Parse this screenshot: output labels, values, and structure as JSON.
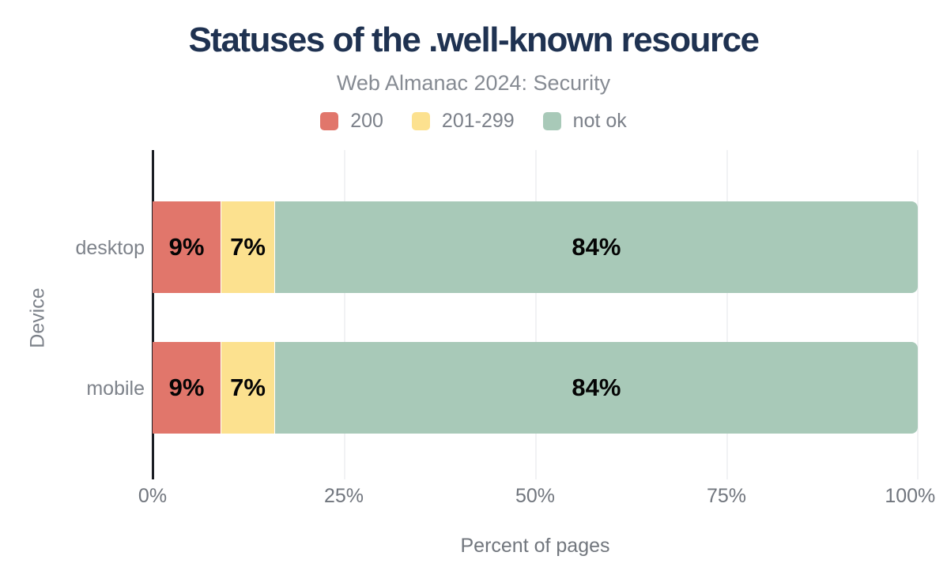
{
  "chart_data": {
    "type": "bar",
    "orientation": "horizontal",
    "stacked": true,
    "title": "Statuses of the .well-known resource",
    "subtitle": "Web Almanac 2024: Security",
    "categories": [
      "desktop",
      "mobile"
    ],
    "series": [
      {
        "name": "200",
        "color": "#e1766b",
        "values": [
          9,
          9
        ]
      },
      {
        "name": "201-299",
        "color": "#fce18f",
        "values": [
          7,
          7
        ]
      },
      {
        "name": "not ok",
        "color": "#a8c9b8",
        "values": [
          84,
          84
        ]
      }
    ],
    "data_labels": [
      [
        "9%",
        "7%",
        "84%"
      ],
      [
        "9%",
        "7%",
        "84%"
      ]
    ],
    "xlabel": "Percent of pages",
    "ylabel": "Device",
    "xlim": [
      0,
      100
    ],
    "xticks": [
      "0%",
      "25%",
      "50%",
      "75%",
      "100%"
    ],
    "legend_position": "top",
    "grid": "vertical",
    "colors": {
      "title": "#1f3251",
      "subtitle": "#868b93",
      "axis_text": "#7b8089",
      "axis_line": "#1b1e24",
      "gridline": "#f1f2f4",
      "data_label": "#050505",
      "background": "#ffffff"
    }
  }
}
